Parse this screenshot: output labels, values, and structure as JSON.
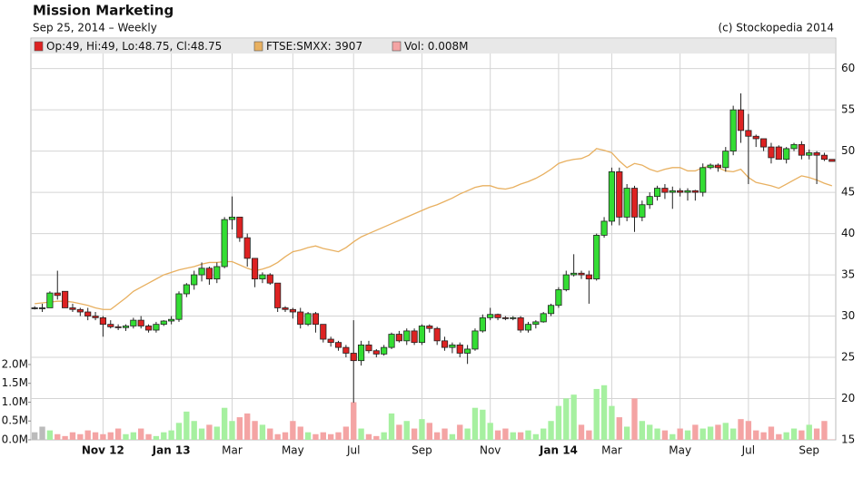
{
  "chart_data": {
    "type": "candlestick",
    "title": "Mission Marketing",
    "subtitle": "Sep 25, 2014 – Weekly",
    "credit": "(c) Stockopedia 2014",
    "grid": true,
    "categories": [
      null,
      null,
      null,
      null,
      null,
      null,
      null,
      null,
      null,
      "Nov 12",
      null,
      null,
      null,
      null,
      null,
      null,
      null,
      null,
      "Jan 13",
      null,
      null,
      null,
      null,
      null,
      null,
      null,
      "Mar",
      null,
      null,
      null,
      null,
      null,
      null,
      null,
      "May",
      null,
      null,
      null,
      null,
      null,
      null,
      null,
      "Jul",
      null,
      null,
      null,
      null,
      null,
      null,
      null,
      null,
      "Sep",
      null,
      null,
      null,
      null,
      null,
      null,
      null,
      null,
      "Nov",
      null,
      null,
      null,
      null,
      null,
      null,
      null,
      null,
      "Jan 14",
      null,
      null,
      null,
      null,
      null,
      null,
      "Mar",
      null,
      null,
      null,
      null,
      null,
      null,
      null,
      null,
      "May",
      null,
      null,
      null,
      null,
      null,
      null,
      null,
      null,
      "Jul",
      null,
      null,
      null,
      null,
      null,
      null,
      null,
      "Sep",
      null,
      null,
      null
    ],
    "ylim": [
      15,
      63.7
    ],
    "yticks": [
      15,
      20,
      25,
      30,
      35,
      40,
      45,
      50,
      55,
      60
    ],
    "y2lim": [
      0,
      10.67
    ],
    "y2ticks": [
      {
        "value": 0,
        "label": "0.0M"
      },
      {
        "value": 0.5,
        "label": "0.5M"
      },
      {
        "value": 1,
        "label": "1.0M"
      },
      {
        "value": 1.5,
        "label": "1.5M"
      },
      {
        "value": 2,
        "label": "2.0M"
      }
    ],
    "series": [
      {
        "name": "Op:49, Hi:49, Lo:48.75, Cl:48.75",
        "type": "candlestick",
        "color": "#dd2222",
        "up_color": "#33dd33",
        "down_color": "#dd2222",
        "flat_color": "#333333",
        "open": [
          31,
          31,
          31,
          32.8,
          33,
          31,
          30.8,
          30.5,
          30,
          29.8,
          29,
          28.7,
          28.6,
          28.8,
          29.5,
          28.8,
          28.3,
          29,
          29.4,
          29.6,
          32.7,
          33.8,
          35,
          35.8,
          34.5,
          36,
          41.7,
          42,
          39.5,
          37,
          34.5,
          35,
          34,
          31,
          30.8,
          30.5,
          29,
          30.3,
          29,
          27.2,
          26.8,
          26.2,
          25.5,
          24.6,
          26.5,
          25.8,
          25.4,
          26.2,
          27.8,
          27,
          28.2,
          26.8,
          28.8,
          28.5,
          27,
          26.2,
          26.5,
          25.5,
          26,
          28.2,
          29.8,
          30.2,
          29.8,
          29.7,
          29.8,
          28.3,
          29,
          29.3,
          30.3,
          31.3,
          33.2,
          35,
          35.2,
          35,
          34.5,
          39.8,
          41.5,
          47.5,
          42,
          45.5,
          42,
          43.5,
          44.5,
          45.5,
          45,
          45.2,
          45,
          45.2,
          45,
          48,
          48.3,
          48,
          50,
          55,
          52.5,
          51.8,
          51.5,
          50.5,
          50.5,
          49,
          50.3,
          50.8,
          49.5,
          49.8,
          49.5,
          49
        ],
        "high": [
          31.2,
          31.5,
          33,
          35.5,
          33,
          31.5,
          31,
          31,
          30.5,
          30,
          29.5,
          29,
          29,
          29.8,
          30,
          29,
          29.3,
          29.5,
          30,
          33,
          34,
          35.5,
          36.5,
          36,
          36.5,
          42,
          44.5,
          42,
          40,
          37,
          35.3,
          35.2,
          34,
          31.2,
          31,
          31,
          30.5,
          30.5,
          29,
          27.5,
          27,
          26.5,
          29.5,
          27,
          27,
          26,
          26.5,
          28,
          28.2,
          28.5,
          28.5,
          29,
          29,
          28.7,
          27.5,
          26.8,
          26.8,
          26.5,
          28.5,
          30.2,
          31,
          30.3,
          30,
          30,
          30,
          29.3,
          29.5,
          30.5,
          31.5,
          33.5,
          35.5,
          37.5,
          35.5,
          35.5,
          40,
          42,
          48,
          48,
          46,
          45.8,
          44,
          45,
          45.8,
          46,
          45.7,
          45.5,
          45.5,
          45.3,
          48.5,
          48.5,
          48.5,
          50.5,
          55.5,
          57,
          54.5,
          52,
          51.5,
          51,
          50.7,
          50.5,
          51,
          51.2,
          50.2,
          50,
          49.8,
          49
        ],
        "low": [
          30.8,
          30.5,
          31,
          32,
          31,
          30.5,
          30,
          29.5,
          29.5,
          27.5,
          28.5,
          28.3,
          28.2,
          28.5,
          28.5,
          28,
          28,
          28.8,
          29,
          29.3,
          32.3,
          33.2,
          34.2,
          33.8,
          34,
          35.8,
          40.5,
          39,
          36,
          33.5,
          34,
          33.8,
          30.5,
          30.5,
          29.7,
          28.5,
          28.8,
          28,
          26.8,
          26.3,
          25.8,
          25,
          19.5,
          24,
          25.5,
          25,
          25.2,
          26,
          26.8,
          26.5,
          26.5,
          26.5,
          28,
          26.5,
          25.8,
          25.5,
          25,
          24.2,
          25.8,
          28,
          29.5,
          29.5,
          29.5,
          29.5,
          28,
          28,
          28.5,
          29.2,
          30,
          31,
          33,
          34.8,
          34.5,
          31.5,
          34.3,
          39.5,
          41,
          41,
          41.5,
          40.2,
          41.5,
          43,
          44,
          44.2,
          43,
          44.5,
          44,
          44,
          44.5,
          47.8,
          47.5,
          47.5,
          49.5,
          51,
          46,
          50.5,
          50,
          48.5,
          49,
          48.5,
          50,
          49,
          49,
          46,
          48.8,
          48.75
        ],
        "close": [
          31,
          31,
          32.8,
          32.5,
          31,
          30.8,
          30.5,
          30,
          29.8,
          29,
          28.7,
          28.6,
          28.8,
          29.5,
          28.8,
          28.3,
          29,
          29.4,
          29.6,
          32.7,
          33.8,
          35,
          35.8,
          34.5,
          36,
          41.7,
          42,
          39.5,
          37,
          34.5,
          35,
          34,
          31,
          30.8,
          30.5,
          29,
          30.3,
          29,
          27.2,
          26.8,
          26.2,
          25.5,
          24.6,
          26.5,
          25.8,
          25.4,
          26.2,
          27.8,
          27,
          28.2,
          26.8,
          28.8,
          28.5,
          27,
          26.2,
          26.5,
          25.5,
          26,
          28.2,
          29.8,
          30.2,
          29.8,
          29.7,
          29.8,
          28.3,
          29,
          29.3,
          30.3,
          31.3,
          33.2,
          35,
          35.2,
          35,
          34.5,
          39.8,
          41.5,
          47.5,
          42,
          45.5,
          42,
          43.5,
          44.5,
          45.5,
          45,
          45.2,
          45,
          45.2,
          45,
          48,
          48.3,
          48,
          50,
          55,
          52.5,
          51.8,
          51.5,
          50.5,
          49.2,
          49,
          50.3,
          50.8,
          49.5,
          49.8,
          49.5,
          49,
          48.75
        ]
      },
      {
        "name": "FTSE:SMXX: 3907",
        "type": "line",
        "color": "#e8b060",
        "values": [
          31.5,
          31.6,
          31.7,
          31.8,
          31.8,
          31.7,
          31.5,
          31.3,
          31.0,
          30.8,
          30.8,
          31.5,
          32.2,
          33.0,
          33.5,
          34.0,
          34.5,
          35.0,
          35.3,
          35.6,
          35.8,
          36.0,
          36.3,
          36.5,
          36.5,
          36.6,
          36.6,
          36.2,
          35.8,
          35.5,
          35.7,
          36.0,
          36.5,
          37.2,
          37.8,
          38.0,
          38.3,
          38.5,
          38.2,
          38.0,
          37.8,
          38.3,
          39.0,
          39.6,
          40.0,
          40.4,
          40.8,
          41.2,
          41.6,
          42.0,
          42.4,
          42.8,
          43.2,
          43.5,
          43.9,
          44.3,
          44.8,
          45.2,
          45.6,
          45.8,
          45.8,
          45.5,
          45.4,
          45.6,
          46.0,
          46.3,
          46.7,
          47.2,
          47.8,
          48.5,
          48.8,
          49.0,
          49.1,
          49.5,
          50.3,
          50.1,
          49.8,
          48.8,
          48.0,
          48.5,
          48.3,
          47.8,
          47.5,
          47.8,
          48.0,
          48.0,
          47.6,
          47.6,
          48.0,
          48.2,
          48.0,
          47.6,
          47.5,
          47.8,
          46.8,
          46.2,
          46.0,
          45.8,
          45.5,
          46.0,
          46.5,
          47.0,
          46.8,
          46.5,
          46.1,
          45.8
        ]
      },
      {
        "name": "Vol: 0.008M",
        "type": "bar",
        "axis": "y2",
        "color": "#f4a4a4",
        "up_color": "#a6f0a0",
        "down_color": "#f4a4a4",
        "flat_color": "#bbbbbb",
        "values": [
          0.2,
          0.35,
          0.25,
          0.15,
          0.1,
          0.2,
          0.15,
          0.25,
          0.2,
          0.15,
          0.2,
          0.3,
          0.15,
          0.2,
          0.3,
          0.15,
          0.1,
          0.2,
          0.25,
          0.45,
          0.75,
          0.5,
          0.3,
          0.4,
          0.35,
          0.85,
          0.5,
          0.6,
          0.7,
          0.5,
          0.4,
          0.3,
          0.15,
          0.2,
          0.5,
          0.35,
          0.2,
          0.15,
          0.2,
          0.15,
          0.2,
          0.35,
          1.0,
          0.3,
          0.15,
          0.1,
          0.2,
          0.7,
          0.4,
          0.5,
          0.3,
          0.55,
          0.45,
          0.2,
          0.3,
          0.15,
          0.4,
          0.3,
          0.85,
          0.8,
          0.45,
          0.25,
          0.3,
          0.2,
          0.2,
          0.25,
          0.15,
          0.3,
          0.5,
          0.9,
          1.1,
          1.2,
          0.4,
          0.25,
          1.35,
          1.45,
          0.9,
          0.6,
          0.35,
          1.1,
          0.5,
          0.4,
          0.3,
          0.25,
          0.15,
          0.3,
          0.25,
          0.4,
          0.3,
          0.35,
          0.4,
          0.45,
          0.3,
          0.55,
          0.5,
          0.25,
          0.2,
          0.35,
          0.15,
          0.2,
          0.3,
          0.25,
          0.4,
          0.3,
          0.5,
          0.008
        ]
      }
    ]
  }
}
